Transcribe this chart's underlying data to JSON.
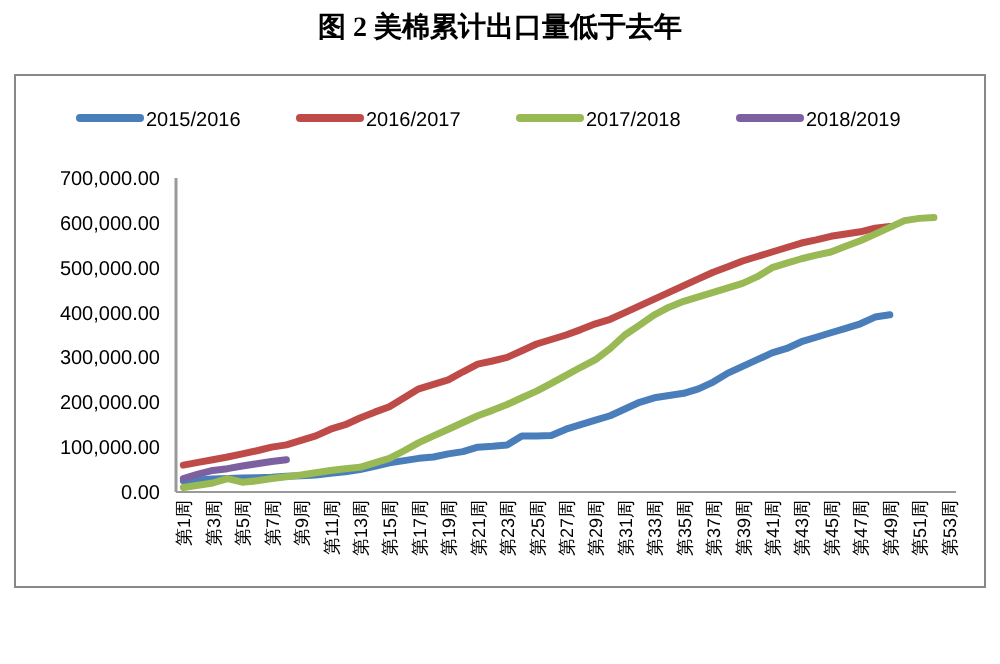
{
  "chart_data": {
    "type": "line",
    "title": "图 2 美棉累计出口量低于去年",
    "categories": [
      "第1周",
      null,
      "第3周",
      null,
      "第5周",
      null,
      "第7周",
      null,
      "第9周",
      null,
      "第11周",
      null,
      "第13周",
      null,
      "第15周",
      null,
      "第17周",
      null,
      "第19周",
      null,
      "第21周",
      null,
      "第23周",
      null,
      "第25周",
      null,
      "第27周",
      null,
      "第29周",
      null,
      "第31周",
      null,
      "第33周",
      null,
      "第35周",
      null,
      "第37周",
      null,
      "第39周",
      null,
      "第41周",
      null,
      "第43周",
      null,
      "第45周",
      null,
      "第47周",
      null,
      "第49周",
      null,
      "第51周",
      null,
      "第53周"
    ],
    "series": [
      {
        "name": "2015/2016",
        "color": "#4a7ebb",
        "values": [
          25000,
          27000,
          29000,
          30000,
          31000,
          32000,
          33000,
          35000,
          36000,
          38000,
          42000,
          45000,
          50000,
          57000,
          65000,
          70000,
          75000,
          78000,
          85000,
          90000,
          100000,
          102000,
          105000,
          125000,
          125000,
          126000,
          140000,
          150000,
          160000,
          170000,
          185000,
          200000,
          210000,
          215000,
          220000,
          230000,
          245000,
          265000,
          280000,
          295000,
          310000,
          320000,
          335000,
          345000,
          355000,
          365000,
          375000,
          390000,
          395000,
          null,
          null,
          null,
          null
        ]
      },
      {
        "name": "2016/2017",
        "color": "#be4b48",
        "values": [
          60000,
          66000,
          72000,
          78000,
          85000,
          92000,
          100000,
          105000,
          115000,
          125000,
          140000,
          150000,
          165000,
          178000,
          190000,
          210000,
          230000,
          240000,
          250000,
          268000,
          285000,
          292000,
          300000,
          315000,
          330000,
          340000,
          350000,
          362000,
          375000,
          385000,
          400000,
          415000,
          430000,
          445000,
          460000,
          475000,
          490000,
          502000,
          515000,
          525000,
          535000,
          545000,
          555000,
          562000,
          570000,
          575000,
          580000,
          588000,
          592000,
          null,
          null,
          null,
          null
        ]
      },
      {
        "name": "2017/2018",
        "color": "#98b954",
        "values": [
          10000,
          15000,
          20000,
          30000,
          22000,
          25000,
          30000,
          34000,
          38000,
          43000,
          48000,
          52000,
          55000,
          65000,
          75000,
          92000,
          110000,
          125000,
          140000,
          155000,
          170000,
          182000,
          195000,
          210000,
          225000,
          242000,
          260000,
          278000,
          295000,
          320000,
          350000,
          372000,
          395000,
          412000,
          425000,
          435000,
          445000,
          455000,
          465000,
          480000,
          500000,
          510000,
          520000,
          528000,
          535000,
          548000,
          560000,
          575000,
          590000,
          605000,
          610000,
          612000,
          null
        ]
      },
      {
        "name": "2018/2019",
        "color": "#7d60a0",
        "values": [
          30000,
          40000,
          48000,
          52000,
          58000,
          63000,
          68000,
          72000,
          null,
          null,
          null,
          null,
          null,
          null,
          null,
          null,
          null,
          null,
          null,
          null,
          null,
          null,
          null,
          null,
          null,
          null,
          null,
          null,
          null,
          null,
          null,
          null,
          null,
          null,
          null,
          null,
          null,
          null,
          null,
          null,
          null,
          null,
          null,
          null,
          null,
          null,
          null,
          null,
          null,
          null,
          null,
          null,
          null
        ]
      }
    ],
    "ylim": [
      0,
      700000
    ],
    "yticks": [
      {
        "value": 0,
        "label": "0.00"
      },
      {
        "value": 100000,
        "label": "100,000.00"
      },
      {
        "value": 200000,
        "label": "200,000.00"
      },
      {
        "value": 300000,
        "label": "300,000.00"
      },
      {
        "value": 400000,
        "label": "400,000.00"
      },
      {
        "value": 500000,
        "label": "500,000.00"
      },
      {
        "value": 600000,
        "label": "600,000.00"
      },
      {
        "value": 700000,
        "label": "700,000.00"
      }
    ],
    "legend": "top",
    "grid": false
  }
}
